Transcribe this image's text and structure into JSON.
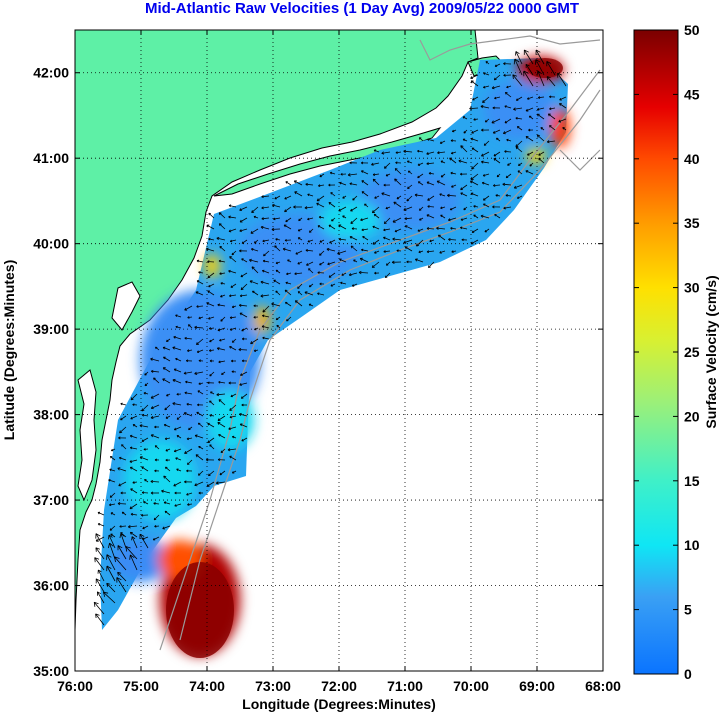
{
  "title": "Mid-Atlantic Raw Velocities (1 Day Avg) 2009/05/22 0000 GMT",
  "chart_data": {
    "type": "heatmap",
    "xlabel": "Longitude (Degrees:Minutes)",
    "ylabel": "Latitude (Degrees:Minutes)",
    "xlim": [
      -76,
      -68
    ],
    "ylim": [
      35,
      42.5
    ],
    "x_ticks": [
      "76:00",
      "75:00",
      "74:00",
      "73:00",
      "72:00",
      "71:00",
      "70:00",
      "69:00",
      "68:00"
    ],
    "y_ticks": [
      "35:00",
      "36:00",
      "37:00",
      "38:00",
      "39:00",
      "40:00",
      "41:00",
      "42:00"
    ],
    "grid": "dotted",
    "colorbar": {
      "label": "Surface Velocity (cm/s)",
      "min": 0,
      "max": 50,
      "ticks": [
        "0",
        "5",
        "10",
        "15",
        "20",
        "25",
        "30",
        "35",
        "40",
        "45",
        "50"
      ]
    },
    "colors": {
      "land": "#5ef0a6",
      "ocean": "#ffffff",
      "bathymetry": "#999999",
      "coast": "#000000",
      "vector": "#000000"
    }
  }
}
